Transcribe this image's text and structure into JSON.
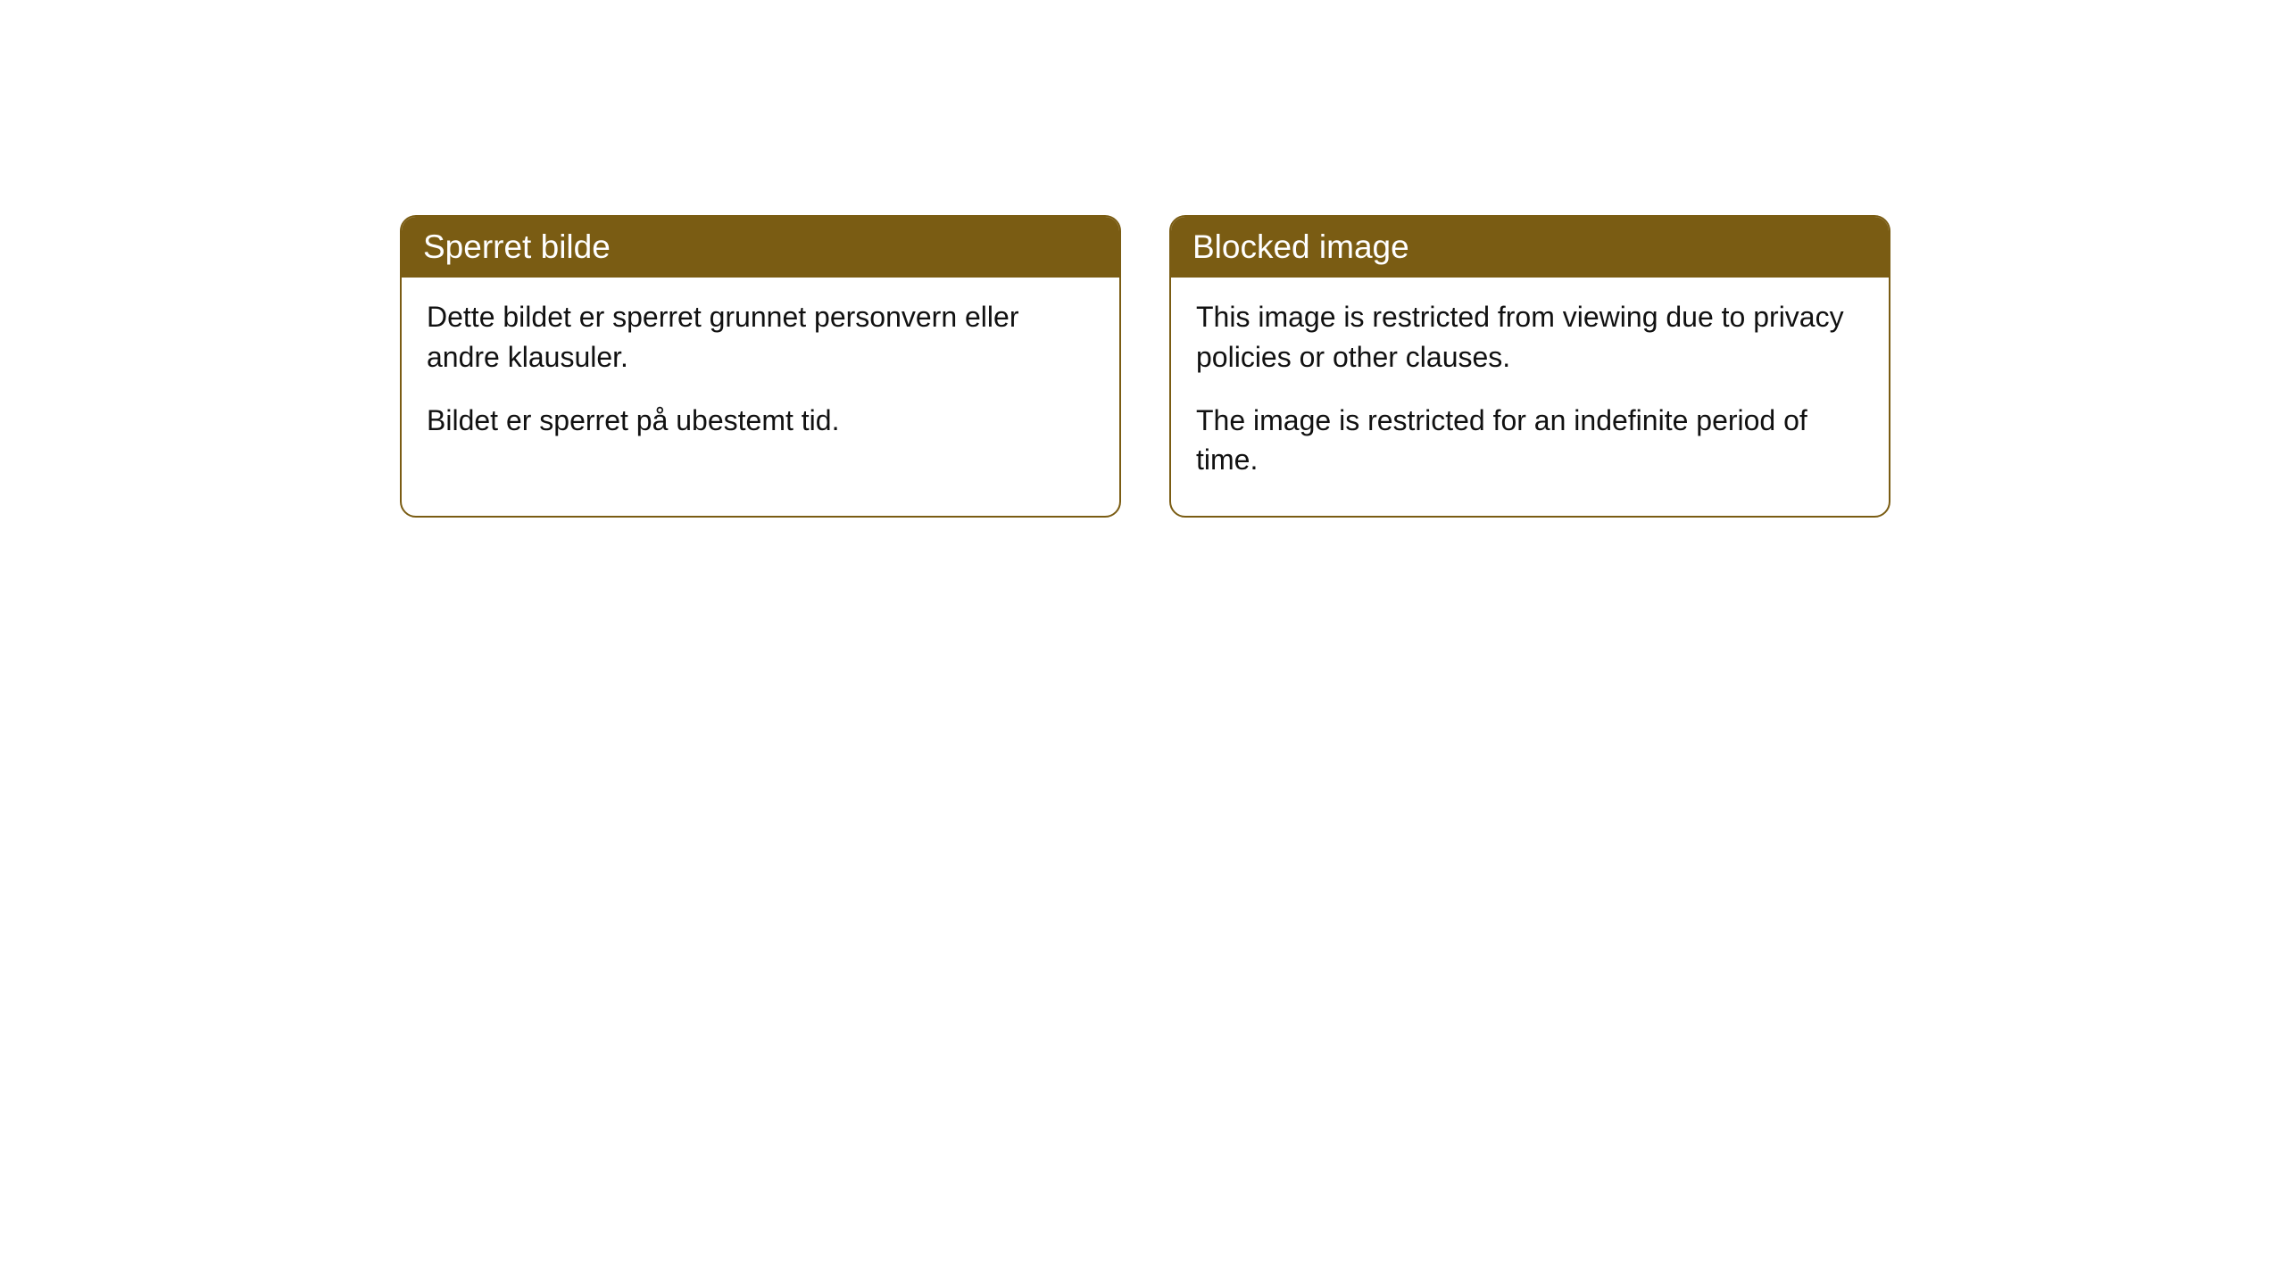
{
  "cards": [
    {
      "header": "Sperret bilde",
      "paragraph1": "Dette bildet er sperret grunnet personvern eller andre klausuler.",
      "paragraph2": "Bildet er sperret på ubestemt tid."
    },
    {
      "header": "Blocked image",
      "paragraph1": "This image is restricted from viewing due to privacy policies or other clauses.",
      "paragraph2": "The image is restricted for an indefinite period of time."
    }
  ],
  "styling": {
    "header_background_color": "#7a5c13",
    "header_text_color": "#ffffff",
    "border_color": "#7a5c13",
    "body_background_color": "#ffffff",
    "body_text_color": "#111111",
    "border_radius": 18,
    "header_fontsize": 37,
    "body_fontsize": 32
  }
}
